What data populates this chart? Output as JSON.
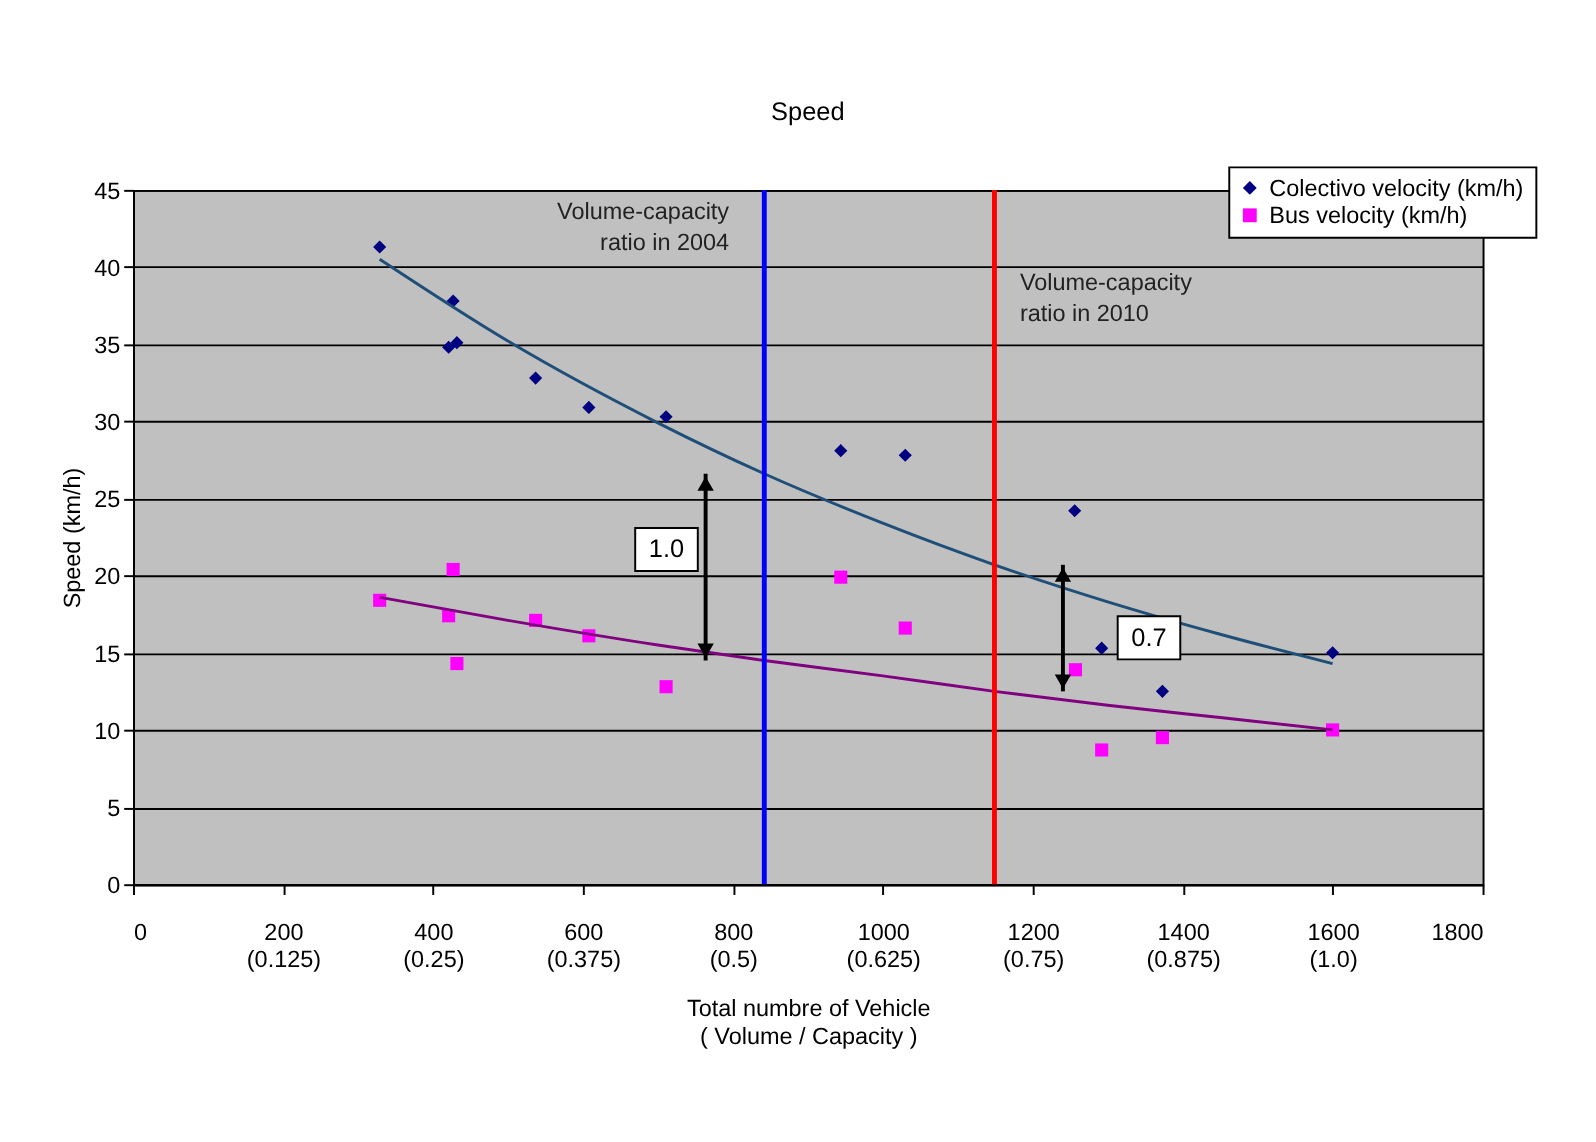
{
  "chart_data": {
    "type": "scatter",
    "title": "Speed",
    "xlabel": "Total numbre of Vehicle\n( Volume / Capacity )",
    "ylabel": "Speed (km/h)",
    "series": [
      {
        "name": "Colectivo velocity (km/h)",
        "color": "#000080",
        "marker": "diamond",
        "x": [
          329,
          427,
          421,
          432,
          537,
          608,
          711,
          944,
          1030,
          1256,
          1292,
          1373,
          1600
        ],
        "values": [
          41.3,
          37.8,
          34.8,
          35.1,
          32.8,
          30.9,
          30.3,
          28.1,
          27.8,
          24.2,
          15.3,
          12.5,
          15.0
        ]
      },
      {
        "name": "Bus velocity (km/h)",
        "color": "#ff00ff",
        "marker": "square",
        "x": [
          329,
          427,
          421,
          432,
          537,
          608,
          711,
          944,
          1030,
          1257,
          1292,
          1373,
          1600
        ],
        "values": [
          18.4,
          20.4,
          17.4,
          14.3,
          17.1,
          16.1,
          12.8,
          19.9,
          16.6,
          13.9,
          8.7,
          9.5,
          10.0
        ]
      },
      {
        "type": "line",
        "color": "#1f4e79",
        "x": [
          329,
          500,
          700,
          842,
          1000,
          1149,
          1300,
          1450,
          1600
        ],
        "values": [
          40.5,
          35.2,
          29.9,
          26.6,
          23.4,
          20.7,
          18.3,
          16.2,
          14.3
        ]
      },
      {
        "type": "line",
        "color": "#800080",
        "x": [
          329,
          500,
          700,
          842,
          1000,
          1149,
          1300,
          1450,
          1600
        ],
        "values": [
          18.6,
          17.1,
          15.5,
          14.5,
          13.5,
          12.5,
          11.6,
          10.8,
          10.0
        ]
      }
    ],
    "xlim": [
      0,
      1800
    ],
    "xticks": [
      0,
      {
        "value": 200,
        "label": "200\n(0.125)"
      },
      {
        "value": 400,
        "label": "400\n(0.25)"
      },
      {
        "value": 600,
        "label": "600\n(0.375)"
      },
      {
        "value": 800,
        "label": "800\n(0.5)"
      },
      {
        "value": 1000,
        "label": "1000\n(0.625)"
      },
      {
        "value": 1200,
        "label": "1200\n(0.75)"
      },
      {
        "value": 1400,
        "label": "1400\n(0.875)"
      },
      {
        "value": 1600,
        "label": "1600\n(1.0)"
      },
      1800
    ],
    "ylim": [
      0,
      45
    ],
    "yticks": [
      0,
      5,
      10,
      15,
      20,
      25,
      30,
      35,
      40,
      45
    ],
    "ref_lines": [
      {
        "axis": "x",
        "value": 842,
        "label": "Volume-capacity\nratio in 2004",
        "color": "#0000ff"
      },
      {
        "axis": "x",
        "value": 1149,
        "label": "Volume-capacity\nratio in 2010",
        "color": "#ff0000"
      }
    ],
    "annotations": [
      "1.0",
      "0.7"
    ],
    "grid": "y",
    "legend": "top right"
  }
}
